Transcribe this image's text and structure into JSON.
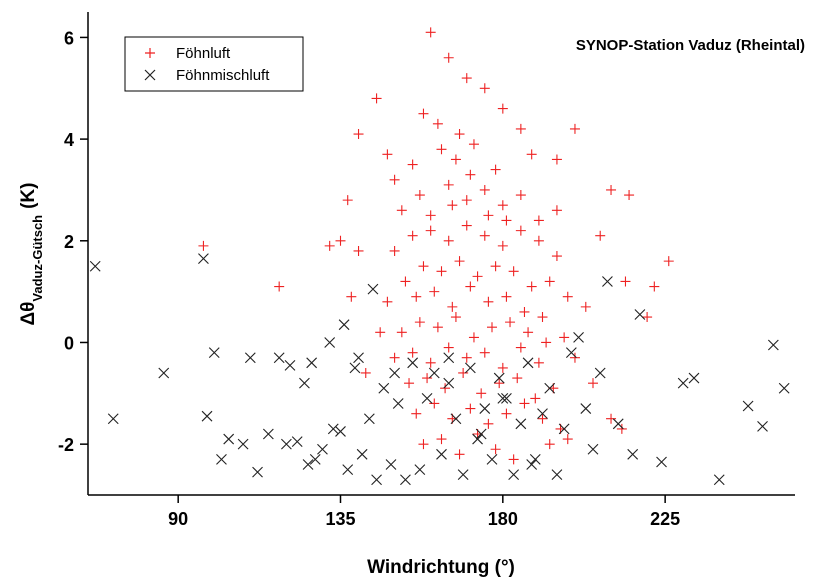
{
  "chart_data": {
    "type": "scatter",
    "title": "SYNOP-Station Vaduz (Rheintal)",
    "xlabel": "Windrichtung (°)",
    "ylabel": {
      "symbol": "Δθ",
      "subscript": "Vaduz-Gütsch",
      "unit": "(K)"
    },
    "xlim": [
      65,
      261
    ],
    "ylim": [
      -3,
      6.5
    ],
    "xticks": [
      90,
      135,
      180,
      225
    ],
    "yticks": [
      -2,
      0,
      2,
      4,
      6
    ],
    "legend": "upper left",
    "series": [
      {
        "name": "Föhnluft",
        "color": "#ee2222",
        "marker": "plus",
        "x": [
          160,
          165,
          170,
          175,
          180,
          185,
          158,
          162,
          168,
          172,
          145,
          140,
          148,
          150,
          155,
          163,
          167,
          178,
          188,
          195,
          200,
          210,
          215,
          222,
          137,
          132,
          118,
          97,
          135,
          140,
          152,
          157,
          160,
          165,
          170,
          175,
          180,
          185,
          190,
          195,
          150,
          155,
          160,
          165,
          170,
          175,
          180,
          185,
          190,
          195,
          153,
          158,
          163,
          168,
          173,
          178,
          183,
          188,
          193,
          198,
          148,
          156,
          161,
          166,
          171,
          176,
          181,
          186,
          191,
          203,
          152,
          157,
          162,
          167,
          172,
          177,
          182,
          187,
          192,
          197,
          150,
          155,
          160,
          165,
          170,
          175,
          180,
          185,
          190,
          200,
          154,
          159,
          164,
          169,
          174,
          179,
          184,
          189,
          194,
          205,
          156,
          161,
          166,
          171,
          176,
          181,
          186,
          191,
          196,
          210,
          158,
          163,
          168,
          173,
          178,
          183,
          193,
          198,
          213,
          226,
          138,
          142,
          146,
          207,
          214,
          220,
          171,
          176,
          166,
          181
        ],
        "values": [
          6.1,
          5.6,
          5.2,
          5.0,
          4.6,
          4.2,
          4.5,
          4.3,
          4.1,
          3.9,
          4.8,
          4.1,
          3.7,
          3.2,
          3.5,
          3.8,
          3.6,
          3.4,
          3.7,
          3.6,
          4.2,
          3.0,
          2.9,
          1.1,
          2.8,
          1.9,
          1.1,
          1.9,
          2.0,
          1.8,
          2.6,
          2.9,
          2.5,
          3.1,
          2.8,
          3.0,
          2.7,
          2.9,
          2.4,
          2.6,
          1.8,
          2.1,
          2.2,
          2.0,
          2.3,
          2.1,
          1.9,
          2.2,
          2.0,
          1.7,
          1.2,
          1.5,
          1.4,
          1.6,
          1.3,
          1.5,
          1.4,
          1.1,
          1.2,
          0.9,
          0.8,
          0.9,
          1.0,
          0.7,
          1.1,
          0.8,
          0.9,
          0.6,
          0.5,
          0.7,
          0.2,
          0.4,
          0.3,
          0.5,
          0.1,
          0.3,
          0.4,
          0.2,
          0.0,
          0.1,
          -0.3,
          -0.2,
          -0.4,
          -0.1,
          -0.3,
          -0.2,
          -0.5,
          -0.1,
          -0.4,
          -0.3,
          -0.8,
          -0.7,
          -0.9,
          -0.6,
          -1.0,
          -0.8,
          -0.7,
          -1.1,
          -0.9,
          -0.8,
          -1.4,
          -1.2,
          -1.5,
          -1.3,
          -1.6,
          -1.4,
          -1.2,
          -1.5,
          -1.7,
          -1.5,
          -2.0,
          -1.9,
          -2.2,
          -1.8,
          -2.1,
          -2.3,
          -2.0,
          -1.9,
          -1.7,
          1.6,
          0.9,
          -0.6,
          0.2,
          2.1,
          1.2,
          0.5,
          3.3,
          2.5,
          2.7,
          2.4
        ]
      },
      {
        "name": "Föhnmischluft",
        "color": "#222222",
        "marker": "cross",
        "x": [
          67,
          72,
          86,
          97,
          100,
          102,
          110,
          118,
          125,
          128,
          98,
          104,
          108,
          112,
          115,
          120,
          123,
          126,
          130,
          133,
          135,
          137,
          139,
          141,
          143,
          145,
          147,
          149,
          151,
          153,
          155,
          157,
          159,
          161,
          163,
          165,
          167,
          169,
          171,
          173,
          175,
          177,
          179,
          181,
          183,
          185,
          187,
          189,
          191,
          193,
          195,
          197,
          199,
          201,
          203,
          205,
          207,
          209,
          212,
          216,
          218,
          224,
          230,
          233,
          240,
          248,
          252,
          255,
          258,
          144,
          136,
          132,
          127,
          121,
          180,
          165,
          174,
          150,
          188,
          140
        ],
        "values": [
          1.5,
          -1.5,
          -0.6,
          1.65,
          -0.2,
          -2.3,
          -0.3,
          -0.3,
          -0.8,
          -2.3,
          -1.45,
          -1.9,
          -2.0,
          -2.55,
          -1.8,
          -2.0,
          -1.95,
          -2.4,
          -2.1,
          -1.7,
          -1.75,
          -2.5,
          -0.5,
          -2.2,
          -1.5,
          -2.7,
          -0.9,
          -2.4,
          -1.2,
          -2.7,
          -0.4,
          -2.5,
          -1.1,
          -0.6,
          -2.2,
          -0.8,
          -1.5,
          -2.6,
          -0.5,
          -1.9,
          -1.3,
          -2.3,
          -0.7,
          -1.1,
          -2.6,
          -1.6,
          -0.4,
          -2.3,
          -1.4,
          -0.9,
          -2.6,
          -1.7,
          -0.2,
          0.1,
          -1.3,
          -2.1,
          -0.6,
          1.2,
          -1.6,
          -2.2,
          0.55,
          -2.35,
          -0.8,
          -0.7,
          -2.7,
          -1.25,
          -1.65,
          -0.05,
          -0.9,
          1.05,
          0.35,
          0.0,
          -0.4,
          -0.45,
          -1.1,
          -0.3,
          -1.8,
          -0.6,
          -2.4,
          -0.3
        ]
      }
    ]
  }
}
